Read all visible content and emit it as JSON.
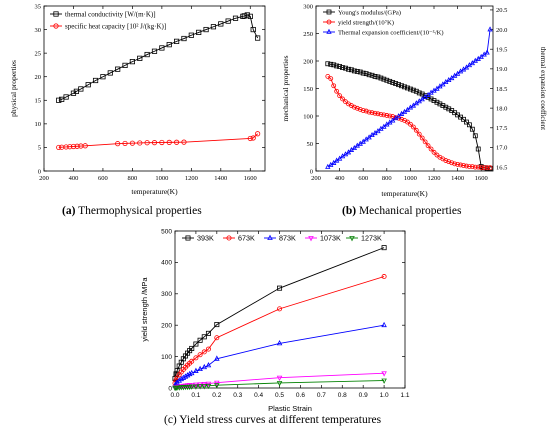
{
  "captions": {
    "a_prefix": "(a)",
    "a_text": " Thermophysical properties",
    "b_prefix": "(b)",
    "b_text": " Mechanical properties",
    "c_text": "(c) Yield stress curves at different temperatures"
  },
  "chart_data": [
    {
      "id": "a",
      "type": "line",
      "xlabel": "temperature(K)",
      "ylabel": "physical properties",
      "xlim": [
        200,
        1700
      ],
      "ylim": [
        0,
        35
      ],
      "xticks": [
        200,
        400,
        600,
        800,
        1000,
        1200,
        1400,
        1600
      ],
      "yticks": [
        0,
        5,
        10,
        15,
        20,
        25,
        30,
        35
      ],
      "legend_position": "top-left",
      "grid": false,
      "series": [
        {
          "name": "thermal conductivity [W/(m·K)]",
          "color": "#000000",
          "marker": "square",
          "x": [
            300,
            320,
            350,
            400,
            420,
            450,
            500,
            550,
            600,
            650,
            700,
            750,
            800,
            850,
            900,
            950,
            1000,
            1050,
            1100,
            1150,
            1200,
            1250,
            1300,
            1350,
            1400,
            1450,
            1500,
            1550,
            1560,
            1580,
            1600,
            1620,
            1650
          ],
          "y": [
            15.0,
            15.2,
            15.7,
            16.5,
            16.9,
            17.4,
            18.3,
            19.2,
            20.0,
            20.8,
            21.6,
            22.4,
            23.2,
            23.9,
            24.7,
            25.4,
            26.1,
            26.8,
            27.5,
            28.1,
            28.8,
            29.4,
            30.0,
            30.6,
            31.2,
            31.8,
            32.4,
            32.8,
            32.9,
            33.1,
            32.8,
            30.0,
            28.2
          ]
        },
        {
          "name": "specific heat capacity [10² J/(kg·K)]",
          "color": "#ff0000",
          "marker": "circle",
          "x": [
            300,
            320,
            350,
            375,
            400,
            425,
            450,
            480,
            700,
            750,
            800,
            850,
            900,
            950,
            1000,
            1050,
            1100,
            1150,
            1600,
            1620,
            1650
          ],
          "y": [
            5.0,
            5.05,
            5.1,
            5.15,
            5.2,
            5.25,
            5.3,
            5.35,
            5.8,
            5.85,
            5.9,
            5.95,
            6.0,
            6.02,
            6.05,
            6.07,
            6.1,
            6.12,
            6.9,
            7.0,
            7.9
          ]
        }
      ]
    },
    {
      "id": "b",
      "type": "line",
      "xlabel": "temperature(K)",
      "ylabel": "mechanical properties",
      "y2label": "thermal expansion coefficient",
      "xlim": [
        200,
        1700
      ],
      "ylim": [
        0,
        300
      ],
      "y2lim": [
        16.4,
        20.6
      ],
      "xticks": [
        200,
        400,
        600,
        800,
        1000,
        1200,
        1400,
        1600
      ],
      "yticks": [
        0,
        50,
        100,
        150,
        200,
        250,
        300
      ],
      "y2ticks": [
        16.5,
        17.0,
        17.5,
        18.0,
        18.5,
        19.0,
        19.5,
        20.0,
        20.5
      ],
      "legend_position": "top-left",
      "grid": false,
      "series": [
        {
          "name": "Young's modulus/(GPa)",
          "axis": "left",
          "color": "#000000",
          "marker": "square",
          "x": [
            300,
            325,
            350,
            375,
            400,
            425,
            450,
            475,
            500,
            525,
            550,
            575,
            600,
            625,
            650,
            675,
            700,
            725,
            750,
            775,
            800,
            825,
            850,
            875,
            900,
            925,
            950,
            975,
            1000,
            1025,
            1050,
            1075,
            1100,
            1125,
            1150,
            1175,
            1200,
            1225,
            1250,
            1275,
            1300,
            1325,
            1350,
            1375,
            1400,
            1425,
            1450,
            1475,
            1500,
            1525,
            1550,
            1575,
            1600,
            1625,
            1650,
            1675
          ],
          "y": [
            195,
            194,
            193,
            191,
            190,
            188,
            187,
            185,
            184,
            182,
            181,
            180,
            178,
            177,
            175,
            174,
            172,
            171,
            169,
            167,
            165,
            163,
            161,
            159,
            157,
            155,
            153,
            151,
            149,
            147,
            145,
            142,
            140,
            137,
            134,
            131,
            128,
            125,
            122,
            119,
            116,
            113,
            110,
            106,
            102,
            98,
            94,
            89,
            84,
            76,
            64,
            40,
            8,
            6,
            5,
            5
          ]
        },
        {
          "name": "yield strength/(10⁷K)",
          "axis": "left",
          "color": "#ff0000",
          "marker": "circle",
          "x": [
            300,
            325,
            350,
            375,
            400,
            425,
            450,
            475,
            500,
            525,
            550,
            575,
            600,
            625,
            650,
            675,
            700,
            725,
            750,
            775,
            800,
            825,
            850,
            875,
            900,
            925,
            950,
            975,
            1000,
            1025,
            1050,
            1075,
            1100,
            1125,
            1150,
            1175,
            1200,
            1225,
            1250,
            1275,
            1300,
            1325,
            1350,
            1375,
            1400,
            1425,
            1450,
            1475,
            1500,
            1525,
            1550,
            1575,
            1600,
            1625,
            1650,
            1675
          ],
          "y": [
            172,
            168,
            155,
            145,
            137,
            131,
            126,
            122,
            119,
            116,
            114,
            112,
            110,
            109,
            107,
            106,
            105,
            104,
            103,
            102,
            101,
            100,
            99,
            97,
            96,
            94,
            92,
            89,
            85,
            80,
            74,
            67,
            60,
            53,
            46,
            40,
            34,
            29,
            25,
            22,
            19,
            17,
            15,
            13,
            12,
            11,
            10,
            9,
            8,
            8,
            7,
            7,
            6,
            6,
            6,
            6
          ]
        },
        {
          "name": "Thermal expansion coefficient/(10⁻⁵/K)",
          "axis": "right",
          "color": "#0000ff",
          "marker": "triangle",
          "x": [
            300,
            325,
            350,
            375,
            400,
            425,
            450,
            475,
            500,
            525,
            550,
            575,
            600,
            625,
            650,
            675,
            700,
            725,
            750,
            775,
            800,
            825,
            850,
            875,
            900,
            925,
            950,
            975,
            1000,
            1025,
            1050,
            1075,
            1100,
            1125,
            1150,
            1175,
            1200,
            1225,
            1250,
            1275,
            1300,
            1325,
            1350,
            1375,
            1400,
            1425,
            1450,
            1475,
            1500,
            1525,
            1550,
            1575,
            1600,
            1625,
            1650,
            1675
          ],
          "y": [
            16.5,
            16.55,
            16.6,
            16.66,
            16.71,
            16.77,
            16.82,
            16.87,
            16.93,
            16.98,
            17.04,
            17.09,
            17.14,
            17.2,
            17.25,
            17.31,
            17.36,
            17.41,
            17.47,
            17.52,
            17.58,
            17.63,
            17.68,
            17.74,
            17.79,
            17.85,
            17.9,
            17.95,
            18.01,
            18.06,
            18.12,
            18.17,
            18.22,
            18.28,
            18.33,
            18.39,
            18.44,
            18.49,
            18.55,
            18.6,
            18.66,
            18.71,
            18.76,
            18.82,
            18.87,
            18.93,
            18.98,
            19.03,
            19.09,
            19.14,
            19.2,
            19.25,
            19.3,
            19.36,
            19.41,
            20.0
          ]
        }
      ]
    },
    {
      "id": "c",
      "type": "line",
      "xlabel": "Plastic Strain",
      "ylabel": "yield strength /MPa",
      "xlim": [
        0,
        1.1
      ],
      "ylim": [
        0,
        500
      ],
      "xticks": [
        "0.0",
        "0.1",
        "0.2",
        "0.3",
        "0.4",
        "0.5",
        "0.6",
        "0.7",
        "0.8",
        "0.9",
        "1.0",
        "1.1"
      ],
      "yticks": [
        0,
        100,
        200,
        300,
        400,
        500
      ],
      "legend_position": "top",
      "grid": false,
      "series": [
        {
          "name": "393K",
          "color": "#000000",
          "marker": "square",
          "x": [
            0,
            0.005,
            0.01,
            0.02,
            0.03,
            0.04,
            0.05,
            0.06,
            0.07,
            0.08,
            0.1,
            0.12,
            0.14,
            0.16,
            0.2,
            0.5,
            1.0
          ],
          "y": [
            30,
            45,
            55,
            70,
            82,
            93,
            102,
            111,
            119,
            126,
            140,
            152,
            163,
            174,
            202,
            318,
            447
          ]
        },
        {
          "name": "673K",
          "color": "#ff0000",
          "marker": "circle",
          "x": [
            0,
            0.005,
            0.01,
            0.02,
            0.03,
            0.04,
            0.05,
            0.06,
            0.07,
            0.08,
            0.1,
            0.12,
            0.14,
            0.16,
            0.2,
            0.5,
            1.0
          ],
          "y": [
            15,
            25,
            32,
            42,
            51,
            59,
            66,
            73,
            79,
            85,
            96,
            106,
            115,
            124,
            160,
            252,
            355
          ]
        },
        {
          "name": "873K",
          "color": "#0000ff",
          "marker": "triangle",
          "x": [
            0,
            0.005,
            0.01,
            0.02,
            0.03,
            0.04,
            0.05,
            0.06,
            0.07,
            0.08,
            0.1,
            0.12,
            0.14,
            0.16,
            0.2,
            0.5,
            1.0
          ],
          "y": [
            8,
            13,
            17,
            23,
            28,
            32,
            36,
            40,
            44,
            47,
            54,
            60,
            66,
            72,
            93,
            142,
            200
          ]
        },
        {
          "name": "1073K",
          "color": "#ff00ff",
          "marker": "triangle-down",
          "x": [
            0,
            0.005,
            0.01,
            0.02,
            0.03,
            0.04,
            0.05,
            0.06,
            0.07,
            0.08,
            0.1,
            0.12,
            0.14,
            0.16,
            0.2,
            0.5,
            1.0
          ],
          "y": [
            2,
            3,
            4,
            5,
            6,
            7,
            8,
            9,
            10,
            10,
            11,
            12,
            13,
            14,
            17,
            33,
            47
          ]
        },
        {
          "name": "1273K",
          "color": "#008000",
          "marker": "triangle-down",
          "x": [
            0,
            0.005,
            0.01,
            0.02,
            0.03,
            0.04,
            0.05,
            0.06,
            0.07,
            0.08,
            0.1,
            0.12,
            0.14,
            0.16,
            0.2,
            0.5,
            1.0
          ],
          "y": [
            1,
            1,
            2,
            2,
            3,
            3,
            4,
            4,
            4,
            5,
            5,
            6,
            6,
            7,
            9,
            16,
            24
          ]
        }
      ]
    }
  ]
}
